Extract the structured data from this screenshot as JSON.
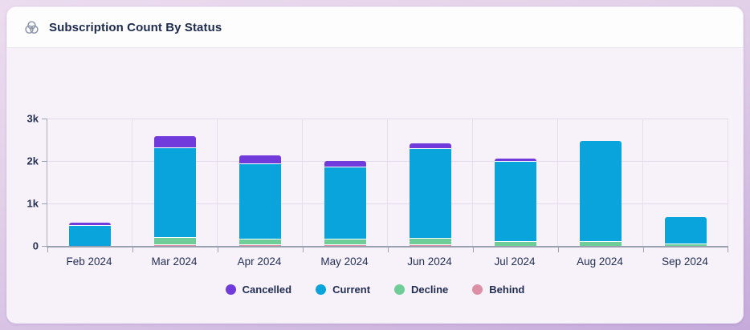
{
  "header": {
    "title": "Subscription Count By Status",
    "icon": "venn-diagram-icon"
  },
  "chart_data": {
    "type": "bar",
    "stacked": true,
    "title": "Subscription Count By Status",
    "categories": [
      "Feb 2024",
      "Mar 2024",
      "Apr 2024",
      "May 2024",
      "Jun 2024",
      "Jul 2024",
      "Aug 2024",
      "Sep 2024"
    ],
    "series": [
      {
        "name": "Behind",
        "color": "#DD8FA5",
        "values": [
          0,
          20,
          20,
          20,
          25,
          0,
          0,
          0
        ]
      },
      {
        "name": "Decline",
        "color": "#6FCE97",
        "values": [
          0,
          150,
          110,
          110,
          125,
          95,
          95,
          35
        ]
      },
      {
        "name": "Current",
        "color": "#09A4DC",
        "values": [
          480,
          2090,
          1760,
          1680,
          2090,
          1860,
          2360,
          620
        ]
      },
      {
        "name": "Cancelled",
        "color": "#713BDB",
        "values": [
          50,
          270,
          185,
          140,
          120,
          55,
          0,
          0
        ]
      }
    ],
    "stack_order_bottom_to_top": [
      "Behind",
      "Decline",
      "Current",
      "Cancelled"
    ],
    "legend": [
      "Cancelled",
      "Current",
      "Decline",
      "Behind"
    ],
    "y_ticks": [
      "3k",
      "2k",
      "1k",
      "0"
    ],
    "ylim": [
      0,
      3000
    ],
    "grid": true,
    "legend_position": "bottom"
  }
}
